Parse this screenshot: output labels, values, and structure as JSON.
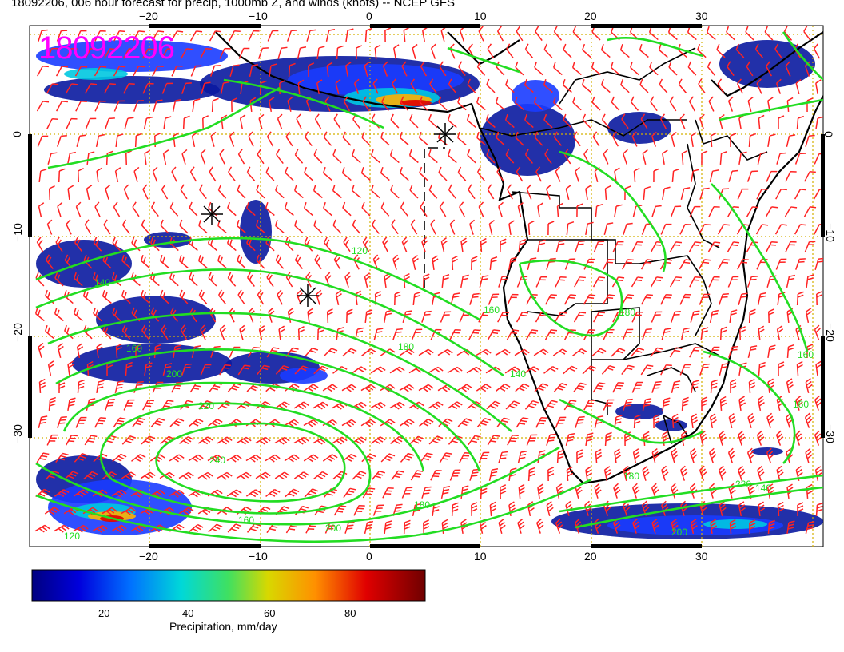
{
  "title": "18092206, 006 hour forecast for precip, 1000mb Z, and winds (knots) -- NCEP GFS",
  "stamp": "18092206",
  "axes": {
    "lon_ticks": [
      "−20",
      "−10",
      "0",
      "10",
      "20",
      "30"
    ],
    "lat_ticks": [
      "0",
      "−10",
      "−20",
      "−30"
    ]
  },
  "contour_labels": [
    "140",
    "120",
    "160",
    "180",
    "200",
    "220",
    "240",
    "160",
    "140",
    "180",
    "200",
    "220",
    "160",
    "180",
    "160",
    "140",
    "120",
    "200",
    "180",
    "160"
  ],
  "colorbar": {
    "title": "Precipitation, mm/day",
    "ticks": [
      "20",
      "40",
      "60",
      "80"
    ]
  },
  "colors": {
    "contour": "#22dd22",
    "barb": "#ff2222",
    "stamp": "#ff00ff",
    "grid": "#d4b000"
  }
}
